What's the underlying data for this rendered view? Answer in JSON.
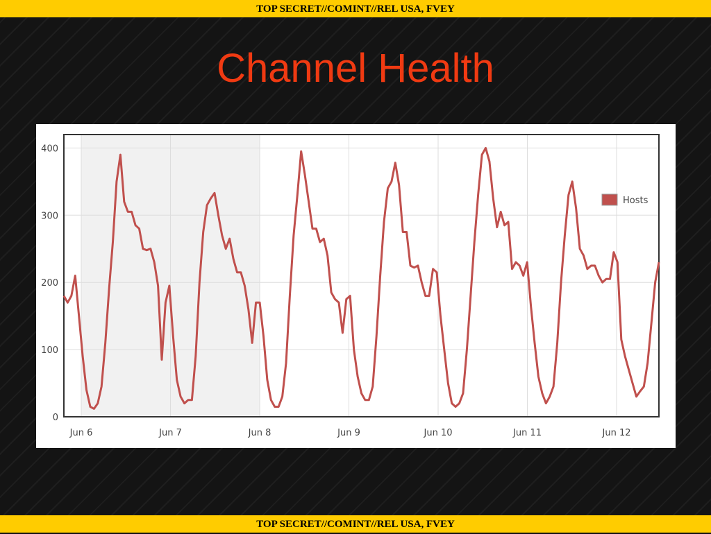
{
  "classification": {
    "top": "TOP SECRET//COMINT//REL USA, FVEY",
    "bottom": "TOP SECRET//COMINT//REL USA, FVEY"
  },
  "title": "Channel Health",
  "chart_data": {
    "type": "line",
    "title": "",
    "xlabel": "",
    "ylabel": "",
    "ylim": [
      0,
      420
    ],
    "yticks": [
      0,
      100,
      200,
      300,
      400
    ],
    "xticks": [
      "Jun 6",
      "Jun 7",
      "Jun 8",
      "Jun 9",
      "Jun 10",
      "Jun 11",
      "Jun 12"
    ],
    "x_range_days": [
      5.8,
      12.45
    ],
    "grid": true,
    "shaded_region": {
      "from": 6.0,
      "to": 8.0
    },
    "legend": {
      "position": "right",
      "entries": [
        "Hosts"
      ]
    },
    "series": [
      {
        "name": "Hosts",
        "color": "#c0504d",
        "points": [
          [
            5.8,
            180
          ],
          [
            5.85,
            170
          ],
          [
            5.9,
            180
          ],
          [
            5.95,
            210
          ],
          [
            6.0,
            150
          ],
          [
            6.05,
            90
          ],
          [
            6.1,
            40
          ],
          [
            6.15,
            15
          ],
          [
            6.2,
            12
          ],
          [
            6.25,
            20
          ],
          [
            6.3,
            45
          ],
          [
            6.35,
            110
          ],
          [
            6.4,
            190
          ],
          [
            6.45,
            260
          ],
          [
            6.5,
            350
          ],
          [
            6.55,
            390
          ],
          [
            6.6,
            320
          ],
          [
            6.65,
            305
          ],
          [
            6.7,
            305
          ],
          [
            6.75,
            285
          ],
          [
            6.8,
            280
          ],
          [
            6.85,
            250
          ],
          [
            6.9,
            248
          ],
          [
            6.95,
            250
          ],
          [
            7.0,
            230
          ],
          [
            7.05,
            195
          ],
          [
            7.1,
            85
          ],
          [
            7.15,
            170
          ],
          [
            7.2,
            195
          ],
          [
            7.25,
            120
          ],
          [
            7.3,
            55
          ],
          [
            7.35,
            30
          ],
          [
            7.4,
            20
          ],
          [
            7.45,
            25
          ],
          [
            7.5,
            25
          ],
          [
            7.55,
            90
          ],
          [
            7.6,
            200
          ],
          [
            7.65,
            275
          ],
          [
            7.7,
            315
          ],
          [
            7.75,
            325
          ],
          [
            7.8,
            333
          ],
          [
            7.85,
            300
          ],
          [
            7.9,
            270
          ],
          [
            7.95,
            250
          ],
          [
            8.0,
            265
          ],
          [
            8.05,
            235
          ],
          [
            8.1,
            215
          ],
          [
            8.15,
            215
          ],
          [
            8.2,
            195
          ],
          [
            8.25,
            160
          ],
          [
            8.3,
            110
          ],
          [
            8.35,
            170
          ],
          [
            8.4,
            170
          ],
          [
            8.45,
            120
          ],
          [
            8.5,
            55
          ],
          [
            8.55,
            25
          ],
          [
            8.6,
            15
          ],
          [
            8.65,
            15
          ],
          [
            8.7,
            30
          ],
          [
            8.75,
            80
          ],
          [
            8.8,
            180
          ],
          [
            8.85,
            270
          ],
          [
            8.9,
            330
          ],
          [
            8.95,
            395
          ],
          [
            9.0,
            360
          ],
          [
            9.05,
            320
          ],
          [
            9.1,
            280
          ],
          [
            9.15,
            280
          ],
          [
            9.2,
            260
          ],
          [
            9.25,
            265
          ],
          [
            9.3,
            240
          ],
          [
            9.35,
            185
          ],
          [
            9.4,
            175
          ],
          [
            9.45,
            170
          ],
          [
            9.5,
            125
          ],
          [
            9.55,
            175
          ],
          [
            9.6,
            180
          ],
          [
            9.65,
            100
          ],
          [
            9.7,
            60
          ],
          [
            9.75,
            35
          ],
          [
            9.8,
            25
          ],
          [
            9.85,
            25
          ],
          [
            9.9,
            45
          ],
          [
            9.95,
            120
          ],
          [
            10.0,
            210
          ],
          [
            10.05,
            290
          ],
          [
            10.1,
            340
          ],
          [
            10.15,
            350
          ],
          [
            10.2,
            378
          ],
          [
            10.25,
            345
          ],
          [
            10.3,
            275
          ],
          [
            10.35,
            275
          ],
          [
            10.4,
            225
          ],
          [
            10.45,
            222
          ],
          [
            10.5,
            225
          ],
          [
            10.55,
            200
          ],
          [
            10.6,
            180
          ],
          [
            10.65,
            180
          ],
          [
            10.7,
            220
          ],
          [
            10.75,
            215
          ],
          [
            10.8,
            150
          ],
          [
            10.85,
            100
          ],
          [
            10.9,
            50
          ],
          [
            10.95,
            20
          ],
          [
            11.0,
            15
          ],
          [
            11.05,
            20
          ],
          [
            11.1,
            35
          ],
          [
            11.15,
            100
          ],
          [
            11.2,
            180
          ],
          [
            11.25,
            260
          ],
          [
            11.3,
            330
          ],
          [
            11.35,
            390
          ],
          [
            11.4,
            400
          ],
          [
            11.45,
            380
          ],
          [
            11.5,
            325
          ],
          [
            11.55,
            282
          ],
          [
            11.6,
            305
          ],
          [
            11.65,
            285
          ],
          [
            11.7,
            290
          ],
          [
            11.75,
            220
          ],
          [
            11.8,
            230
          ],
          [
            11.85,
            225
          ],
          [
            11.9,
            210
          ],
          [
            11.95,
            230
          ],
          [
            12.0,
            165
          ],
          [
            12.05,
            110
          ],
          [
            12.1,
            60
          ],
          [
            12.15,
            35
          ],
          [
            12.2,
            20
          ],
          [
            12.25,
            30
          ],
          [
            12.3,
            45
          ],
          [
            12.35,
            110
          ],
          [
            12.4,
            200
          ],
          [
            12.45,
            270
          ],
          [
            12.5,
            330
          ],
          [
            12.55,
            350
          ],
          [
            12.6,
            310
          ],
          [
            12.65,
            250
          ],
          [
            12.7,
            240
          ],
          [
            12.75,
            220
          ],
          [
            12.8,
            225
          ],
          [
            12.85,
            225
          ],
          [
            12.9,
            210
          ],
          [
            12.95,
            200
          ],
          [
            13.0,
            205
          ],
          [
            13.05,
            205
          ],
          [
            13.1,
            245
          ],
          [
            13.15,
            230
          ],
          [
            13.2,
            115
          ],
          [
            13.25,
            90
          ],
          [
            13.3,
            70
          ],
          [
            13.35,
            50
          ],
          [
            13.4,
            30
          ],
          [
            13.45,
            38
          ],
          [
            13.5,
            45
          ],
          [
            13.55,
            80
          ],
          [
            13.6,
            140
          ],
          [
            13.65,
            200
          ],
          [
            13.7,
            230
          ]
        ]
      }
    ]
  }
}
